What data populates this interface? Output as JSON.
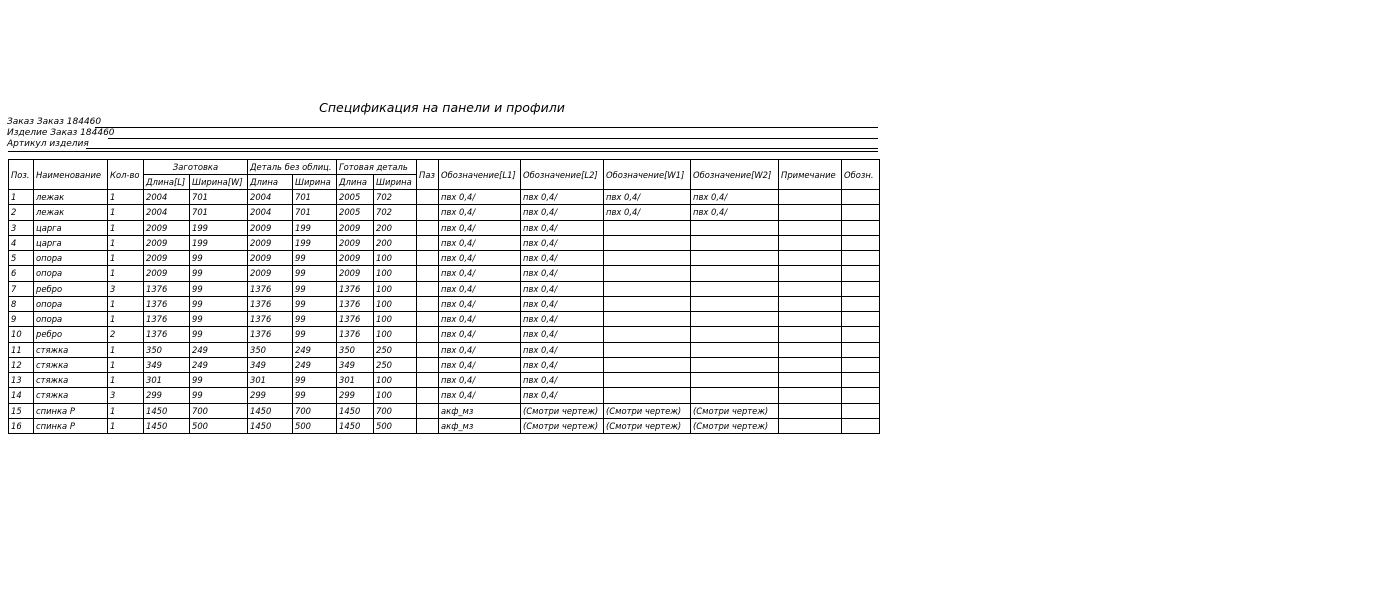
{
  "title": "Спецификация на панели и профили",
  "order_line": "Заказ Заказ 184460",
  "product_line": "Изделие Заказ 184460",
  "article_line": "Артикул изделия",
  "headers": {
    "pos": "Поз.",
    "name": "Наименование",
    "qty": "Кол-во",
    "blank": "Заготовка",
    "blank_len": "Длина[L]",
    "blank_wid": "Ширина[W]",
    "detail": "Деталь без облиц.",
    "detail_len": "Длина",
    "detail_wid": "Ширина",
    "finished": "Готовая деталь",
    "finished_len": "Длина",
    "finished_wid": "Ширина",
    "paz": "Паз",
    "l1": "Обозначение[L1]",
    "l2": "Обозначение[L2]",
    "w1": "Обозначение[W1]",
    "w2": "Обозначение[W2]",
    "note": "Примечание",
    "desig": "Обозн."
  },
  "rows": [
    [
      "1",
      "лежак",
      "1",
      "2004",
      "701",
      "2004",
      "701",
      "2005",
      "702",
      "",
      "пвх 0,4/",
      "пвх 0,4/",
      "пвх 0,4/",
      "пвх 0,4/",
      "",
      ""
    ],
    [
      "2",
      "лежак",
      "1",
      "2004",
      "701",
      "2004",
      "701",
      "2005",
      "702",
      "",
      "пвх 0,4/",
      "пвх 0,4/",
      "пвх 0,4/",
      "пвх 0,4/",
      "",
      ""
    ],
    [
      "3",
      "царга",
      "1",
      "2009",
      "199",
      "2009",
      "199",
      "2009",
      "200",
      "",
      "пвх 0,4/",
      "пвх 0,4/",
      "",
      "",
      "",
      ""
    ],
    [
      "4",
      "царга",
      "1",
      "2009",
      "199",
      "2009",
      "199",
      "2009",
      "200",
      "",
      "пвх 0,4/",
      "пвх 0,4/",
      "",
      "",
      "",
      ""
    ],
    [
      "5",
      "опора",
      "1",
      "2009",
      "99",
      "2009",
      "99",
      "2009",
      "100",
      "",
      "пвх 0,4/",
      "пвх 0,4/",
      "",
      "",
      "",
      ""
    ],
    [
      "6",
      "опора",
      "1",
      "2009",
      "99",
      "2009",
      "99",
      "2009",
      "100",
      "",
      "пвх 0,4/",
      "пвх 0,4/",
      "",
      "",
      "",
      ""
    ],
    [
      "7",
      "ребро",
      "3",
      "1376",
      "99",
      "1376",
      "99",
      "1376",
      "100",
      "",
      "пвх 0,4/",
      "пвх 0,4/",
      "",
      "",
      "",
      ""
    ],
    [
      "8",
      "опора",
      "1",
      "1376",
      "99",
      "1376",
      "99",
      "1376",
      "100",
      "",
      "пвх 0,4/",
      "пвх 0,4/",
      "",
      "",
      "",
      ""
    ],
    [
      "9",
      "опора",
      "1",
      "1376",
      "99",
      "1376",
      "99",
      "1376",
      "100",
      "",
      "пвх 0,4/",
      "пвх 0,4/",
      "",
      "",
      "",
      ""
    ],
    [
      "10",
      "ребро",
      "2",
      "1376",
      "99",
      "1376",
      "99",
      "1376",
      "100",
      "",
      "пвх 0,4/",
      "пвх 0,4/",
      "",
      "",
      "",
      ""
    ],
    [
      "11",
      "стяжка",
      "1",
      "350",
      "249",
      "350",
      "249",
      "350",
      "250",
      "",
      "пвх 0,4/",
      "пвх 0,4/",
      "",
      "",
      "",
      ""
    ],
    [
      "12",
      "стяжка",
      "1",
      "349",
      "249",
      "349",
      "249",
      "349",
      "250",
      "",
      "пвх 0,4/",
      "пвх 0,4/",
      "",
      "",
      "",
      ""
    ],
    [
      "13",
      "стяжка",
      "1",
      "301",
      "99",
      "301",
      "99",
      "301",
      "100",
      "",
      "пвх 0,4/",
      "пвх 0,4/",
      "",
      "",
      "",
      ""
    ],
    [
      "14",
      "стяжка",
      "3",
      "299",
      "99",
      "299",
      "99",
      "299",
      "100",
      "",
      "пвх 0,4/",
      "пвх 0,4/",
      "",
      "",
      "",
      ""
    ],
    [
      "15",
      "спинка Р",
      "1",
      "1450",
      "700",
      "1450",
      "700",
      "1450",
      "700",
      "",
      "акф_мз",
      "(Смотри чертеж)",
      "(Смотри чертеж)",
      "(Смотри чертеж)",
      "",
      ""
    ],
    [
      "16",
      "спинка Р",
      "1",
      "1450",
      "500",
      "1450",
      "500",
      "1450",
      "500",
      "",
      "акф_мз",
      "(Смотри чертеж)",
      "(Смотри чертеж)",
      "(Смотри чертеж)",
      "",
      ""
    ]
  ]
}
